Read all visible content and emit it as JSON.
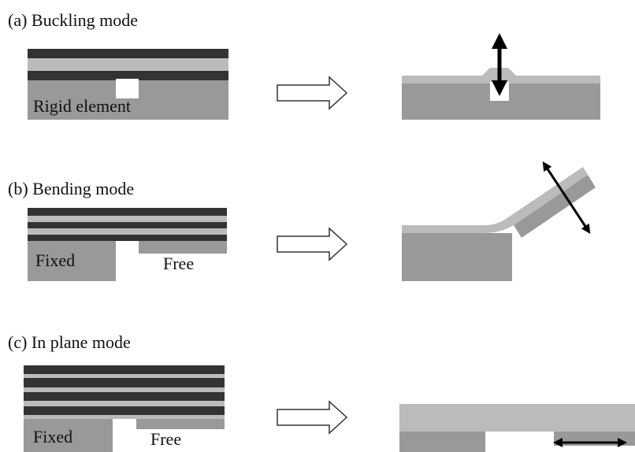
{
  "panels": [
    {
      "title": "(a) Buckling mode",
      "labels": [
        "Rigid element"
      ]
    },
    {
      "title": "(b) Bending mode",
      "labels": [
        "Fixed",
        "Free"
      ]
    },
    {
      "title": "(c) In plane mode",
      "labels": [
        "Fixed",
        "Free"
      ]
    }
  ]
}
